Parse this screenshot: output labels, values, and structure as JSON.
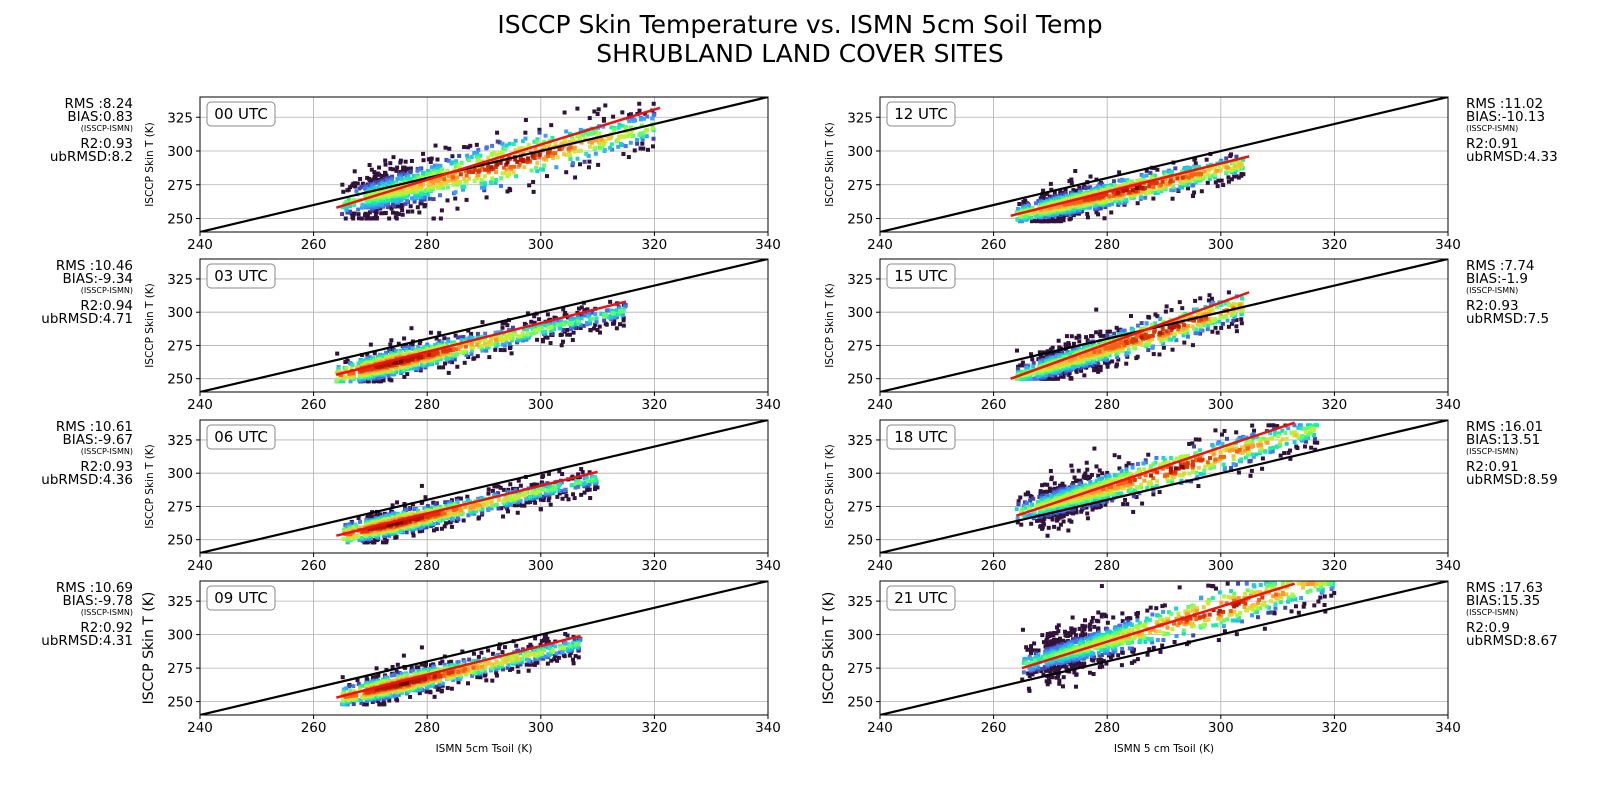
{
  "figure": {
    "title_line1": "ISCCP Skin Temperature vs. ISMN 5cm Soil Temp",
    "title_line2": "SHRUBLAND LAND COVER SITES"
  },
  "colors": {
    "one_to_one_line": "#000000",
    "fit_line": "#ee1111",
    "grid": "#b0b0b0",
    "density_colormap": [
      "#30123b",
      "#4145ab",
      "#4675ed",
      "#39a2fc",
      "#1bcfd4",
      "#24eca6",
      "#61fc6c",
      "#a4fc3b",
      "#d1e834",
      "#f3c63a",
      "#fe9b2d",
      "#f36315",
      "#d93806",
      "#b11901",
      "#7a0403"
    ]
  },
  "chart_data": [
    {
      "type": "scatter",
      "panel": "left-1",
      "label": "00 UTC",
      "xlabel": "",
      "ylabel": "ISCCP Skin T (K)",
      "xlim": [
        240,
        340
      ],
      "ylim": [
        240,
        340
      ],
      "xticks": [
        240,
        260,
        280,
        300,
        320,
        340
      ],
      "yticks": [
        250,
        275,
        300,
        325
      ],
      "grid": true,
      "stats": {
        "rms": "RMS :8.24",
        "bias": "BIAS:0.83",
        "bias_note": "(ISSCP-ISMN)",
        "r2": "R2:0.93",
        "ubrmsd": "ubRMSD:8.2"
      },
      "one_to_one": {
        "x": [
          240,
          340
        ],
        "y": [
          240,
          340
        ]
      },
      "fit_line": {
        "x": [
          264,
          321
        ],
        "y": [
          258,
          332
        ]
      },
      "cloud": {
        "x_range": [
          265,
          320
        ],
        "slope": 1.05,
        "intercept_at_x0": 266,
        "x0": 270,
        "spread": 9,
        "core_x": 295,
        "y_clip": [
          250,
          335
        ]
      }
    },
    {
      "type": "scatter",
      "panel": "left-2",
      "label": "03 UTC",
      "xlabel": "",
      "ylabel": "ISCCP Skin T (K)",
      "xlim": [
        240,
        340
      ],
      "ylim": [
        240,
        340
      ],
      "xticks": [
        240,
        260,
        280,
        300,
        320,
        340
      ],
      "yticks": [
        250,
        275,
        300,
        325
      ],
      "grid": true,
      "stats": {
        "rms": "RMS :10.46",
        "bias": "BIAS:-9.34",
        "bias_note": "(ISSCP-ISMN)",
        "r2": "R2:0.94",
        "ubrmsd": "ubRMSD:4.71"
      },
      "one_to_one": {
        "x": [
          240,
          340
        ],
        "y": [
          240,
          340
        ]
      },
      "fit_line": {
        "x": [
          264,
          315
        ],
        "y": [
          253,
          308
        ]
      },
      "cloud": {
        "x_range": [
          264,
          315
        ],
        "slope": 0.96,
        "intercept_at_x0": 258,
        "x0": 270,
        "spread": 5,
        "core_x": 275,
        "y_clip": [
          248,
          312
        ]
      }
    },
    {
      "type": "scatter",
      "panel": "left-3",
      "label": "06 UTC",
      "xlabel": "",
      "ylabel": "ISCCP Skin T (K)",
      "xlim": [
        240,
        340
      ],
      "ylim": [
        240,
        340
      ],
      "xticks": [
        240,
        260,
        280,
        300,
        320,
        340
      ],
      "yticks": [
        250,
        275,
        300,
        325
      ],
      "grid": true,
      "stats": {
        "rms": "RMS :10.61",
        "bias": "BIAS:-9.67",
        "bias_note": "(ISSCP-ISMN)",
        "r2": "R2:0.93",
        "ubrmsd": "ubRMSD:4.36"
      },
      "one_to_one": {
        "x": [
          240,
          340
        ],
        "y": [
          240,
          340
        ]
      },
      "fit_line": {
        "x": [
          264,
          310
        ],
        "y": [
          253,
          301
        ]
      },
      "cloud": {
        "x_range": [
          265,
          310
        ],
        "slope": 0.95,
        "intercept_at_x0": 258,
        "x0": 270,
        "spread": 4.5,
        "core_x": 275,
        "y_clip": [
          248,
          305
        ]
      }
    },
    {
      "type": "scatter",
      "panel": "left-4",
      "label": "09 UTC",
      "xlabel": "ISMN 5cm Tsoil (K)",
      "ylabel": "ISCCP Skin T (K)",
      "xlim": [
        240,
        340
      ],
      "ylim": [
        240,
        340
      ],
      "xticks": [
        240,
        260,
        280,
        300,
        320,
        340
      ],
      "yticks": [
        250,
        275,
        300,
        325
      ],
      "grid": true,
      "stats": {
        "rms": "RMS :10.69",
        "bias": "BIAS:-9.78",
        "bias_note": "(ISSCP-ISMN)",
        "r2": "R2:0.92",
        "ubrmsd": "ubRMSD:4.31"
      },
      "one_to_one": {
        "x": [
          240,
          340
        ],
        "y": [
          240,
          340
        ]
      },
      "fit_line": {
        "x": [
          264,
          307
        ],
        "y": [
          253,
          299
        ]
      },
      "cloud": {
        "x_range": [
          265,
          307
        ],
        "slope": 0.95,
        "intercept_at_x0": 258,
        "x0": 270,
        "spread": 4.5,
        "core_x": 276,
        "y_clip": [
          248,
          303
        ]
      }
    },
    {
      "type": "scatter",
      "panel": "right-1",
      "label": "12 UTC",
      "xlabel": "",
      "ylabel": "ISCCP Skin T (K)",
      "xlim": [
        240,
        340
      ],
      "ylim": [
        240,
        340
      ],
      "xticks": [
        240,
        260,
        280,
        300,
        320,
        340
      ],
      "yticks": [
        250,
        275,
        300,
        325
      ],
      "grid": true,
      "stats": {
        "rms": "RMS :11.02",
        "bias": "BIAS:-10.13",
        "bias_note": "(ISSCP-ISMN)",
        "r2": "R2:0.91",
        "ubrmsd": "ubRMSD:4.33"
      },
      "one_to_one": {
        "x": [
          240,
          340
        ],
        "y": [
          240,
          340
        ]
      },
      "fit_line": {
        "x": [
          263,
          305
        ],
        "y": [
          252,
          296
        ]
      },
      "cloud": {
        "x_range": [
          264,
          304
        ],
        "slope": 0.95,
        "intercept_at_x0": 258,
        "x0": 270,
        "spread": 5,
        "core_x": 285,
        "y_clip": [
          248,
          300
        ]
      }
    },
    {
      "type": "scatter",
      "panel": "right-2",
      "label": "15 UTC",
      "xlabel": "",
      "ylabel": "ISCCP Skin T (K)",
      "xlim": [
        240,
        340
      ],
      "ylim": [
        240,
        340
      ],
      "xticks": [
        240,
        260,
        280,
        300,
        320,
        340
      ],
      "yticks": [
        250,
        275,
        300,
        325
      ],
      "grid": true,
      "stats": {
        "rms": "RMS :7.74",
        "bias": "BIAS:-1.9",
        "bias_note": "(ISSCP-ISMN)",
        "r2": "R2:0.93",
        "ubrmsd": "ubRMSD:7.5"
      },
      "one_to_one": {
        "x": [
          240,
          340
        ],
        "y": [
          240,
          340
        ]
      },
      "fit_line": {
        "x": [
          263,
          305
        ],
        "y": [
          250,
          315
        ]
      },
      "cloud": {
        "x_range": [
          264,
          304
        ],
        "slope": 1.35,
        "intercept_at_x0": 262,
        "x0": 272,
        "spread": 6,
        "core_x": 290,
        "y_clip": [
          250,
          315
        ]
      }
    },
    {
      "type": "scatter",
      "panel": "right-3",
      "label": "18 UTC",
      "xlabel": "",
      "ylabel": "ISCCP Skin T (K)",
      "xlim": [
        240,
        340
      ],
      "ylim": [
        240,
        340
      ],
      "xticks": [
        240,
        260,
        280,
        300,
        320,
        340
      ],
      "yticks": [
        250,
        275,
        300,
        325
      ],
      "grid": true,
      "stats": {
        "rms": "RMS :16.01",
        "bias": "BIAS:13.51",
        "bias_note": "(ISSCP-ISMN)",
        "r2": "R2:0.91",
        "ubrmsd": "ubRMSD:8.59"
      },
      "one_to_one": {
        "x": [
          240,
          340
        ],
        "y": [
          240,
          340
        ]
      },
      "fit_line": {
        "x": [
          264,
          313
        ],
        "y": [
          268,
          338
        ]
      },
      "cloud": {
        "x_range": [
          264,
          317
        ],
        "slope": 1.2,
        "intercept_at_x0": 283,
        "x0": 275,
        "spread": 7,
        "core_x": 292,
        "y_clip": [
          252,
          336
        ]
      }
    },
    {
      "type": "scatter",
      "panel": "right-4",
      "label": "21 UTC",
      "xlabel": "ISMN 5 cm Tsoil (K)",
      "ylabel": "ISCCP Skin T (K)",
      "xlim": [
        240,
        340
      ],
      "ylim": [
        240,
        340
      ],
      "xticks": [
        240,
        260,
        280,
        300,
        320,
        340
      ],
      "yticks": [
        250,
        275,
        300,
        325
      ],
      "grid": true,
      "stats": {
        "rms": "RMS :17.63",
        "bias": "BIAS:15.35",
        "bias_note": "(ISSCP-ISMN)",
        "r2": "R2:0.9",
        "ubrmsd": "ubRMSD:8.67"
      },
      "one_to_one": {
        "x": [
          240,
          340
        ],
        "y": [
          240,
          340
        ]
      },
      "fit_line": {
        "x": [
          265,
          313
        ],
        "y": [
          275,
          338
        ]
      },
      "cloud": {
        "x_range": [
          265,
          320
        ],
        "slope": 1.2,
        "intercept_at_x0": 289,
        "x0": 275,
        "spread": 8,
        "core_x": 300,
        "y_clip": [
          258,
          338
        ]
      }
    }
  ]
}
